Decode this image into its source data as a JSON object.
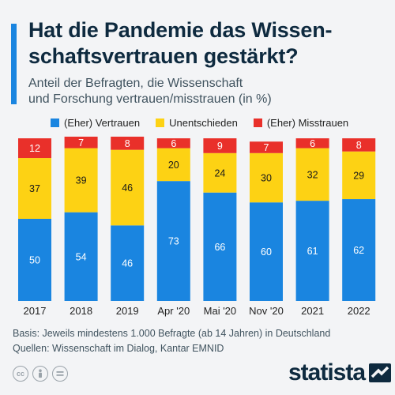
{
  "title": "Hat die Pandemie das Wissen-schaftsvertrauen gestärkt?",
  "subtitle_lines": [
    "Anteil der Befragten, die Wissenschaft",
    "und Forschung vertrauen/misstrauen (in %)"
  ],
  "colors": {
    "accent": "#1a85e0",
    "vertrauen": "#1a85e0",
    "unentschieden": "#fdd214",
    "misstrauen": "#e9302a"
  },
  "chart_data": {
    "type": "bar",
    "stacked": true,
    "title": "",
    "xlabel": "",
    "ylabel": "",
    "ylim": [
      0,
      100
    ],
    "legend_position": "top",
    "grid": false,
    "categories": [
      "2017",
      "2018",
      "2019",
      "Apr '20",
      "Mai '20",
      "Nov '20",
      "2021",
      "2022"
    ],
    "series": [
      {
        "name": "(Eher) Vertrauen",
        "color": "#1a85e0",
        "values": [
          50,
          54,
          46,
          73,
          66,
          60,
          61,
          62
        ]
      },
      {
        "name": "Unentschieden",
        "color": "#fdd214",
        "values": [
          37,
          39,
          46,
          20,
          24,
          30,
          32,
          29
        ]
      },
      {
        "name": "(Eher) Misstrauen",
        "color": "#e9302a",
        "values": [
          12,
          7,
          8,
          6,
          9,
          7,
          6,
          8
        ]
      }
    ]
  },
  "footer": {
    "basis": "Basis: Jeweils mindestens 1.000 Befragte (ab 14 Jahren) in Deutschland",
    "sources": "Quellen: Wissenschaft im Dialog, Kantar EMNID"
  },
  "icons": [
    "cc-icon",
    "by-icon",
    "nd-icon"
  ],
  "logo": {
    "text": "statista"
  }
}
